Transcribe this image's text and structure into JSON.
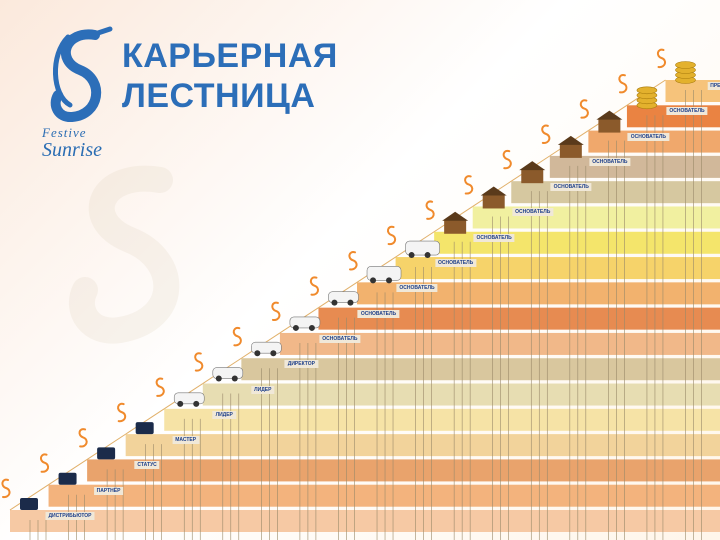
{
  "title_line1": "КАРЬЕРНАЯ",
  "title_line2": "ЛЕСТНИЦА",
  "brand_line1": "Festive",
  "brand_line2": "Sunrise",
  "colors": {
    "brand_blue": "#2c6eb8",
    "step_colors": [
      "#f6c9a4",
      "#f3b37d",
      "#e9a36c",
      "#f2d39b",
      "#f6e3a6",
      "#e7ddb2",
      "#d9c79e",
      "#f1b889",
      "#e78b51",
      "#f2b26e",
      "#f6d36a",
      "#f4e56b",
      "#f1f0a0",
      "#d6c8a0",
      "#d1b89a",
      "#f0a86c",
      "#ea8342",
      "#f6c37b",
      "#f7d889"
    ]
  },
  "rungs": [
    {
      "label": "ДИСТРИБЬЮТОР",
      "icon": "tablet-icon"
    },
    {
      "label": "ПАРТНЁР",
      "icon": "phone-icon"
    },
    {
      "label": "СТАТУС",
      "icon": "laptop-icon"
    },
    {
      "label": "МАСТЕР",
      "icon": "tablet-icon"
    },
    {
      "label": "ЛИДЕР",
      "icon": "car-icon"
    },
    {
      "label": "ЛИДЕР",
      "icon": "car-icon"
    },
    {
      "label": "ДИРЕКТОР",
      "icon": "car-icon"
    },
    {
      "label": "ОСНОВАТЕЛЬ",
      "icon": "car-icon"
    },
    {
      "label": "ОСНОВАТЕЛЬ",
      "icon": "car-icon"
    },
    {
      "label": "ОСНОВАТЕЛЬ",
      "icon": "suv-icon"
    },
    {
      "label": "ОСНОВАТЕЛЬ",
      "icon": "suv-icon"
    },
    {
      "label": "ОСНОВАТЕЛЬ",
      "icon": "house-icon"
    },
    {
      "label": "ОСНОВАТЕЛЬ",
      "icon": "house-icon"
    },
    {
      "label": "ОСНОВАТЕЛЬ",
      "icon": "house-icon"
    },
    {
      "label": "ОСНОВАТЕЛЬ",
      "icon": "house-icon"
    },
    {
      "label": "ОСНОВАТЕЛЬ",
      "icon": "house-icon"
    },
    {
      "label": "ОСНОВАТЕЛЬ",
      "icon": "coins-icon"
    },
    {
      "label": "ПРЕЗИДЕНТ",
      "icon": "coins-icon"
    }
  ]
}
